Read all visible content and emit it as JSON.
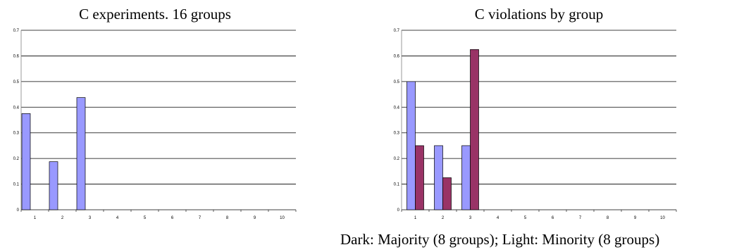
{
  "charts": [
    {
      "title": "C experiments. 16 groups"
    },
    {
      "title": "C violations by group"
    }
  ],
  "caption": "Dark: Majority (8 groups); Light: Minority (8 groups)",
  "colors": {
    "light": "#9999ff",
    "dark": "#993366",
    "grid": "#000000"
  },
  "chart_data": [
    {
      "type": "bar",
      "title": "C experiments. 16 groups",
      "categories": [
        "1",
        "2",
        "3",
        "4",
        "5",
        "6",
        "7",
        "8",
        "9",
        "10"
      ],
      "ylim": [
        0,
        0.7
      ],
      "yticks": [
        "0",
        "0.1",
        "0.2",
        "0.3",
        "0.4",
        "0.5",
        "0.6",
        "0.7"
      ],
      "grid": true,
      "series": [
        {
          "color": "#9999ff",
          "values": [
            0.375,
            0.1875,
            0.4375,
            null,
            null,
            null,
            null,
            null,
            null,
            null
          ]
        }
      ]
    },
    {
      "type": "bar",
      "title": "C violations by group",
      "categories": [
        "1",
        "2",
        "3",
        "4",
        "5",
        "6",
        "7",
        "8",
        "9",
        "10"
      ],
      "ylim": [
        0,
        0.7
      ],
      "yticks": [
        "0",
        "0.1",
        "0.2",
        "0.3",
        "0.4",
        "0.5",
        "0.6",
        "0.7"
      ],
      "grid": true,
      "series": [
        {
          "color": "#9999ff",
          "values": [
            0.5,
            0.25,
            0.25,
            null,
            null,
            null,
            null,
            null,
            null,
            null
          ]
        },
        {
          "color": "#993366",
          "values": [
            0.25,
            0.125,
            0.625,
            null,
            null,
            null,
            null,
            null,
            null,
            null
          ]
        }
      ]
    }
  ]
}
